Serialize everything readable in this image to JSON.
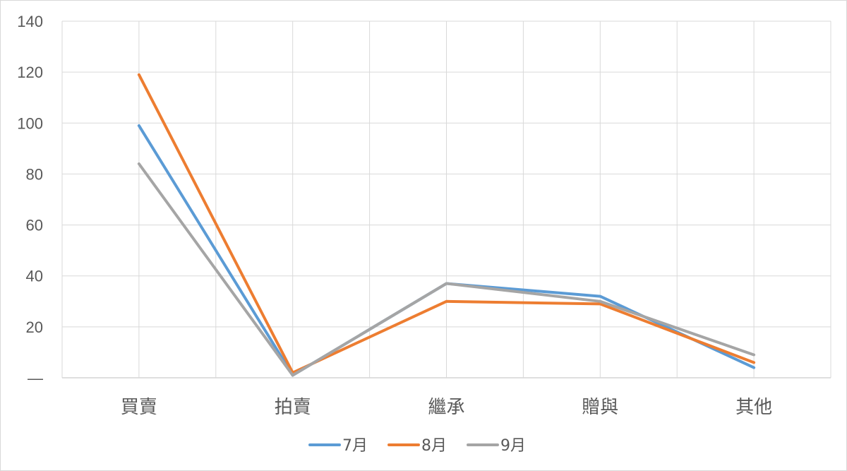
{
  "chart_data": {
    "type": "line",
    "categories": [
      "買賣",
      "拍賣",
      "繼承",
      "贈與",
      "其他"
    ],
    "series": [
      {
        "name": "7月",
        "values": [
          99,
          1,
          37,
          32,
          4
        ],
        "color": "#5B9BD5"
      },
      {
        "name": "8月",
        "values": [
          119,
          2,
          30,
          29,
          6
        ],
        "color": "#ED7D31"
      },
      {
        "name": "9月",
        "values": [
          84,
          1,
          37,
          30,
          9
        ],
        "color": "#A5A5A5"
      }
    ],
    "y_ticks": [
      "—",
      "20",
      "40",
      "60",
      "80",
      "100",
      "120",
      "140"
    ],
    "ylim": [
      0,
      140
    ],
    "grid": true,
    "legend": "bottom"
  }
}
